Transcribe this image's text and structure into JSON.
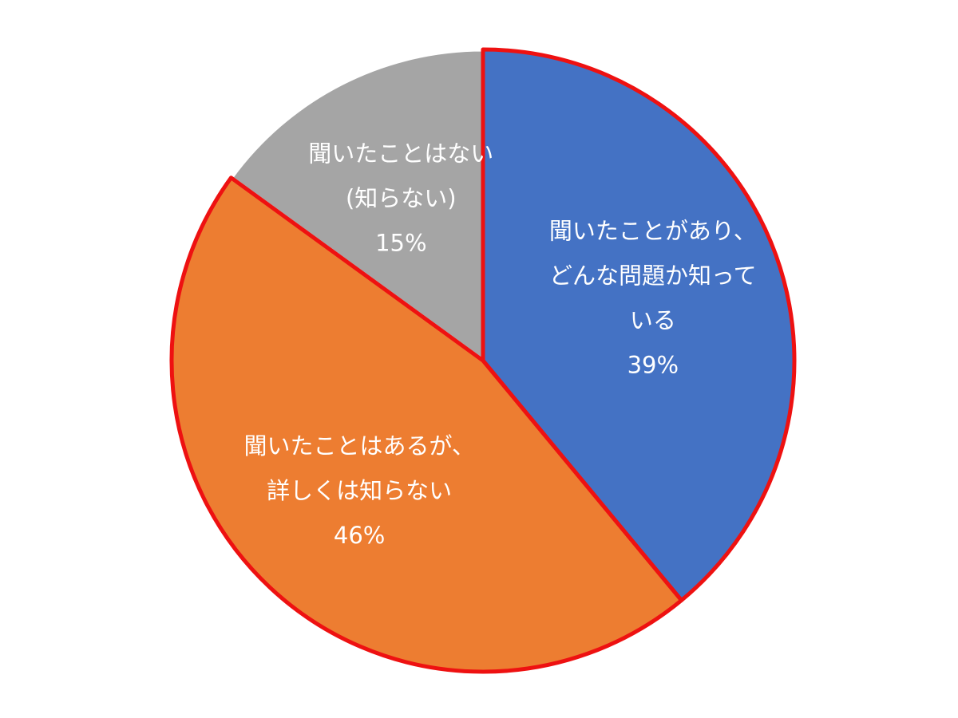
{
  "chart_data": {
    "type": "pie",
    "categories": [
      [
        "聞いたことがあり、",
        "どんな問題か知って",
        "いる"
      ],
      [
        "聞いたことはあるが、",
        "詳しくは知らない"
      ],
      [
        "聞いたことはない",
        "(知らない)"
      ]
    ],
    "values": [
      39,
      46,
      15
    ],
    "value_labels": [
      "39%",
      "46%",
      "15%"
    ],
    "colors": [
      "#4472c4",
      "#ed7d31",
      "#a5a5a5"
    ],
    "edge_colors": [
      "#ee1111",
      "#ee1111",
      "#ffffff"
    ],
    "start_angle": 90,
    "direction": "clockwise"
  }
}
